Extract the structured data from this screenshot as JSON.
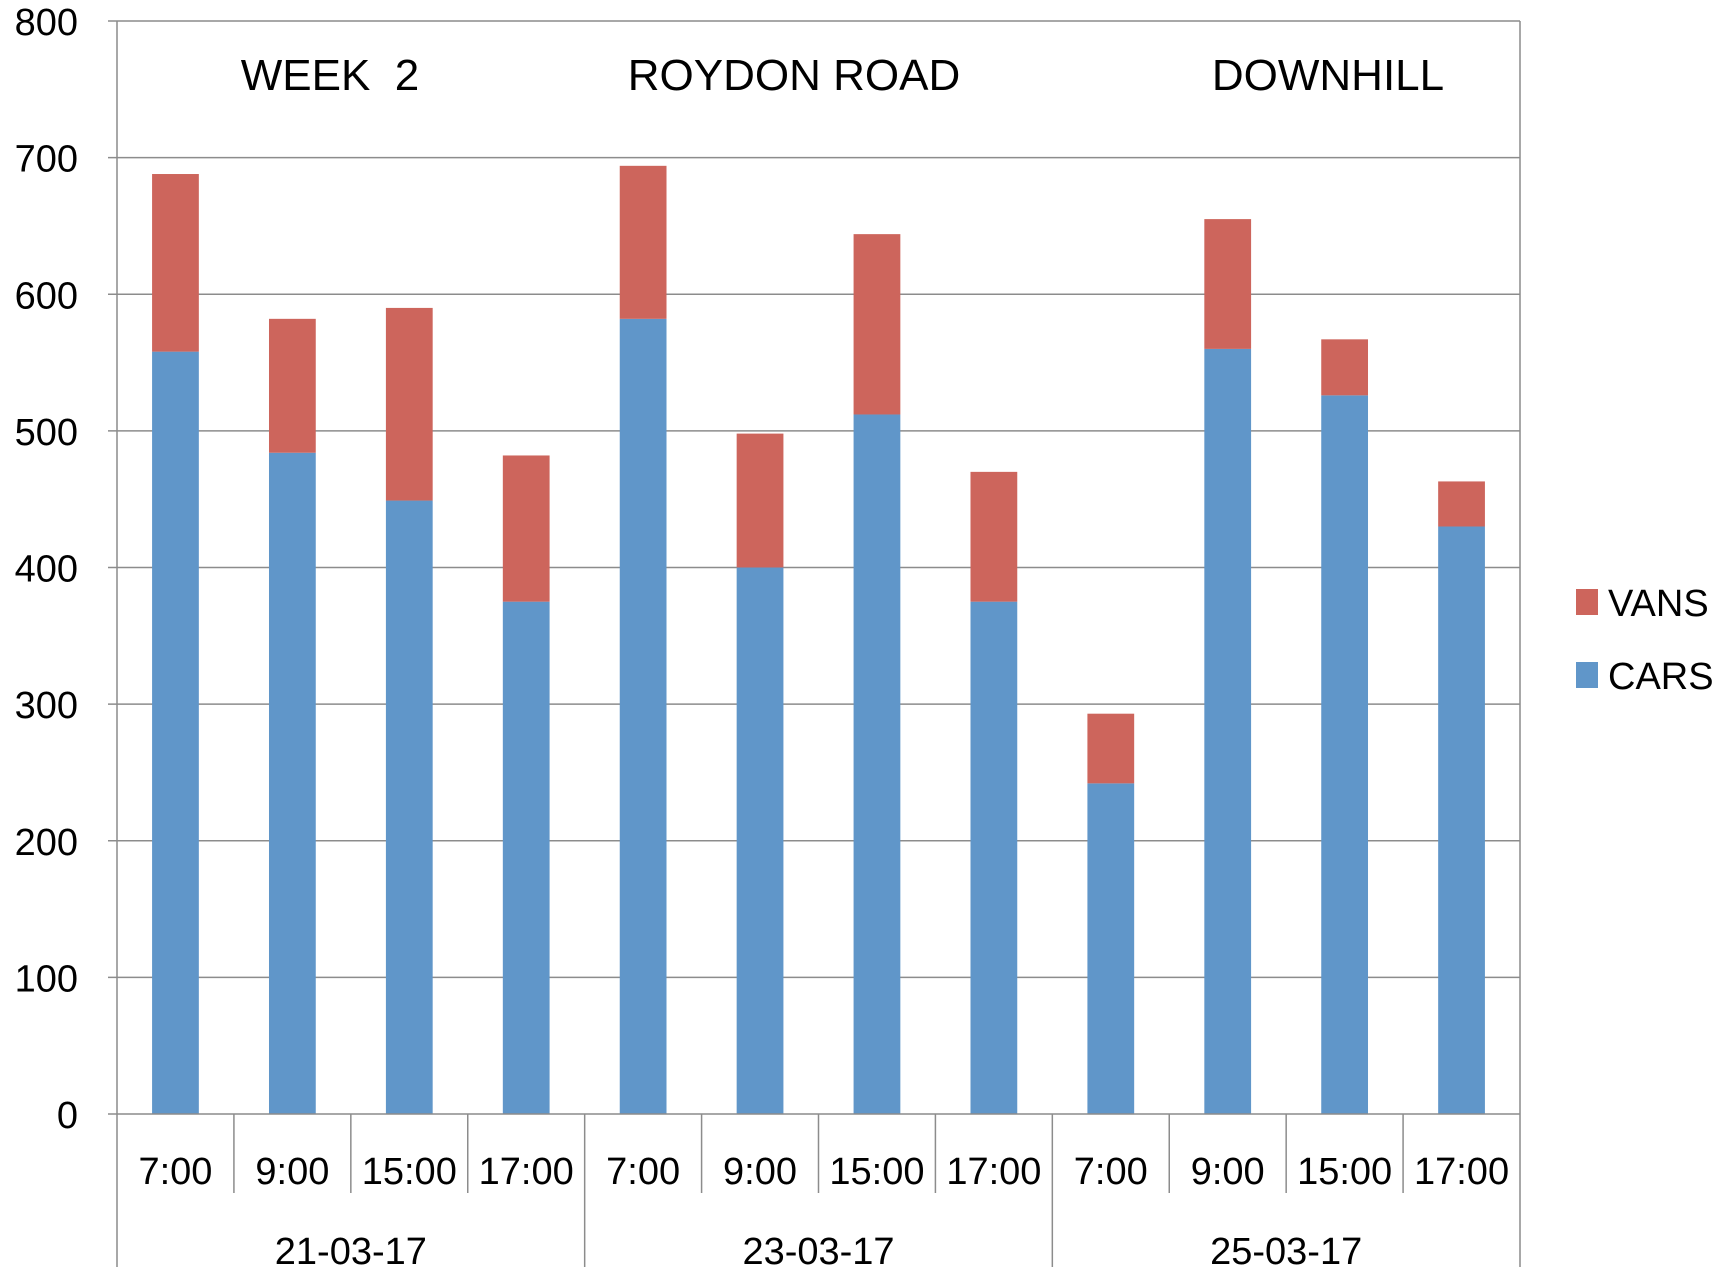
{
  "chart_data": {
    "type": "bar",
    "stacked": true,
    "annotations": [
      "WEEK  2",
      "ROYDON ROAD",
      "DOWNHILL"
    ],
    "groups": [
      {
        "label": "21-03-17",
        "categories": [
          "7:00",
          "9:00",
          "15:00",
          "17:00"
        ]
      },
      {
        "label": "23-03-17",
        "categories": [
          "7:00",
          "9:00",
          "15:00",
          "17:00"
        ]
      },
      {
        "label": "25-03-17",
        "categories": [
          "7:00",
          "9:00",
          "15:00",
          "17:00"
        ]
      }
    ],
    "categories": [
      "7:00",
      "9:00",
      "15:00",
      "17:00",
      "7:00",
      "9:00",
      "15:00",
      "17:00",
      "7:00",
      "9:00",
      "15:00",
      "17:00"
    ],
    "series": [
      {
        "name": "CARS",
        "color": "#6096C9",
        "values": [
          558,
          484,
          449,
          375,
          582,
          400,
          512,
          375,
          242,
          560,
          526,
          430
        ]
      },
      {
        "name": "VANS",
        "color": "#CD655C",
        "values": [
          130,
          98,
          141,
          107,
          112,
          98,
          132,
          95,
          51,
          95,
          41,
          33
        ]
      }
    ],
    "ylim": [
      0,
      800
    ],
    "yticks": [
      0,
      100,
      200,
      300,
      400,
      500,
      600,
      700,
      800
    ],
    "grid": true,
    "legend": "right",
    "legend_order": [
      "VANS",
      "CARS"
    ],
    "xlabel": "",
    "ylabel": ""
  }
}
